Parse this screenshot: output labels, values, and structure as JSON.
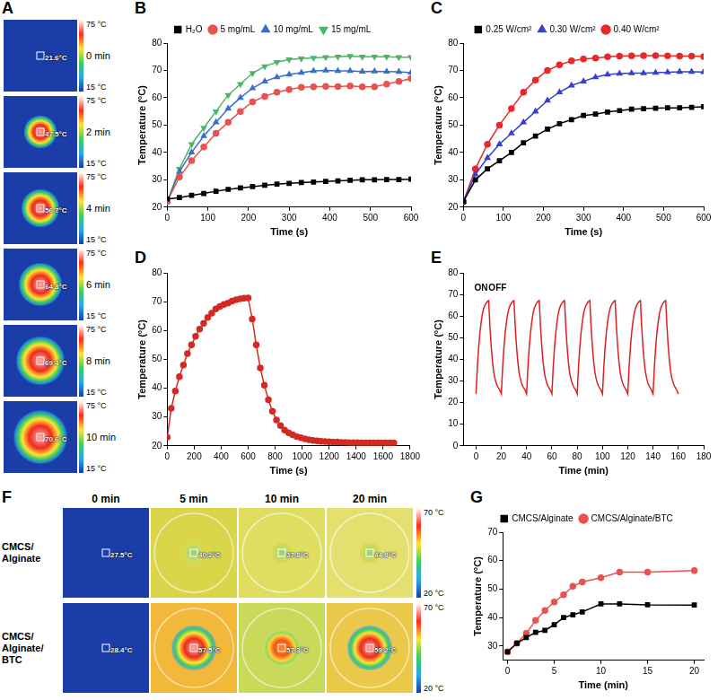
{
  "chart_data": [
    {
      "panel_label": "B",
      "type": "line",
      "x_label": "Time (s)",
      "y_label": "Temperature (°C)",
      "x": [
        0,
        30,
        60,
        90,
        120,
        150,
        180,
        210,
        240,
        270,
        300,
        330,
        360,
        390,
        420,
        450,
        480,
        510,
        540,
        570,
        600
      ],
      "series": [
        {
          "name": "H₂O",
          "color": "#000000",
          "marker": "square",
          "values": [
            23,
            23.5,
            24.3,
            25,
            25.8,
            26.5,
            27,
            27.5,
            28,
            28.4,
            28.7,
            29,
            29.2,
            29.4,
            29.6,
            29.8,
            30,
            30,
            30.1,
            30.1,
            30.2
          ]
        },
        {
          "name": "5 mg/mL",
          "color": "#e8524f",
          "marker": "circle",
          "values": [
            22,
            31,
            37,
            42,
            47,
            51,
            55,
            58.5,
            60.5,
            62,
            63,
            63.8,
            64,
            64.2,
            64.1,
            64.3,
            64,
            64,
            65,
            66,
            67
          ]
        },
        {
          "name": "10 mg/mL",
          "color": "#3a6fc9",
          "marker": "triangle",
          "values": [
            22,
            33,
            40,
            46,
            51,
            56,
            60,
            63.5,
            66,
            67.5,
            68.5,
            69.2,
            69.8,
            70,
            69.8,
            69.8,
            69.6,
            69.7,
            69.6,
            69.5,
            69.2
          ]
        },
        {
          "name": "15 mg/mL",
          "color": "#4db56a",
          "marker": "triangle_down",
          "values": [
            22,
            34,
            43,
            49,
            55,
            61,
            65,
            69,
            71.5,
            73,
            74,
            74.3,
            74.6,
            74.8,
            75,
            75.2,
            75,
            75,
            75,
            74.8,
            74.8
          ]
        }
      ],
      "xlim": [
        0,
        600
      ],
      "xticks": [
        0,
        100,
        200,
        300,
        400,
        500,
        600
      ],
      "ylim": [
        20,
        80
      ],
      "yticks": [
        20,
        30,
        40,
        50,
        60,
        70,
        80
      ],
      "grid": false,
      "legend": "top"
    },
    {
      "panel_label": "C",
      "type": "line",
      "x_label": "Time (s)",
      "y_label": "Temperature (°C)",
      "x": [
        0,
        30,
        60,
        90,
        120,
        150,
        180,
        210,
        240,
        270,
        300,
        330,
        360,
        390,
        420,
        450,
        480,
        510,
        540,
        570,
        600
      ],
      "series": [
        {
          "name": "0.25 W/cm²",
          "color": "#000000",
          "marker": "square",
          "values": [
            22,
            30,
            34,
            37,
            40,
            43.5,
            46,
            48.5,
            50.5,
            52,
            53.5,
            54,
            54.8,
            55.3,
            55.8,
            56,
            56.2,
            56.3,
            56.3,
            56.5,
            56.7
          ]
        },
        {
          "name": "0.30 W/cm²",
          "color": "#3a3fd0",
          "marker": "triangle",
          "values": [
            22,
            32,
            38,
            43,
            47,
            51,
            55,
            59,
            62,
            64.5,
            66,
            67.5,
            68.5,
            68.8,
            69,
            69,
            69.2,
            69.3,
            69.5,
            69.5,
            69.4
          ]
        },
        {
          "name": "0.40 W/cm²",
          "color": "#e8282a",
          "marker": "circle",
          "values": [
            22,
            34,
            43,
            50,
            56,
            62,
            66.5,
            70,
            72,
            73.5,
            74.2,
            74.5,
            75,
            75.2,
            75.3,
            75.4,
            75.4,
            75.3,
            75.2,
            75.2,
            75.1
          ]
        }
      ],
      "xlim": [
        0,
        600
      ],
      "xticks": [
        0,
        100,
        200,
        300,
        400,
        500,
        600
      ],
      "ylim": [
        20,
        80
      ],
      "yticks": [
        20,
        30,
        40,
        50,
        60,
        70,
        80
      ],
      "grid": false,
      "legend": "top"
    },
    {
      "panel_label": "D",
      "type": "line",
      "x_label": "Time (s)",
      "y_label": "Temperature (°C)",
      "x": [
        0,
        30,
        60,
        90,
        120,
        150,
        180,
        210,
        240,
        270,
        300,
        330,
        360,
        390,
        420,
        450,
        480,
        510,
        540,
        570,
        600,
        630,
        660,
        690,
        720,
        750,
        780,
        810,
        840,
        870,
        900,
        930,
        960,
        990,
        1020,
        1050,
        1080,
        1110,
        1140,
        1170,
        1200,
        1230,
        1260,
        1290,
        1320,
        1350,
        1380,
        1410,
        1440,
        1470,
        1500,
        1530,
        1560,
        1590,
        1620,
        1650,
        1680
      ],
      "series": [
        {
          "color": "#d42a24",
          "marker": "circle",
          "values": [
            23,
            33,
            39,
            44,
            48,
            52,
            55,
            58,
            60.5,
            62.5,
            64.5,
            66,
            67.5,
            68.3,
            69,
            69.5,
            70.2,
            70.7,
            71,
            71.2,
            71.3,
            64,
            55,
            47,
            41,
            36,
            32,
            29,
            27,
            25.5,
            24.5,
            23.8,
            23.2,
            22.8,
            22.4,
            22.1,
            21.9,
            21.7,
            21.6,
            21.5,
            21.4,
            21.3,
            21.3,
            21.2,
            21.2,
            21.1,
            21.1,
            21.1,
            21,
            21,
            21,
            21,
            21,
            21,
            21,
            21,
            21
          ]
        }
      ],
      "xlim": [
        0,
        1800
      ],
      "xticks": [
        0,
        200,
        400,
        600,
        800,
        1000,
        1200,
        1400,
        1600,
        1800
      ],
      "ylim": [
        20,
        80
      ],
      "yticks": [
        20,
        30,
        40,
        50,
        60,
        70,
        80
      ],
      "grid": false
    },
    {
      "panel_label": "E",
      "type": "line",
      "x_label": "Time (min)",
      "y_label": "Temperature (°C)",
      "x": [
        0,
        1,
        2,
        3,
        4,
        5,
        6,
        7,
        8,
        9,
        10,
        11,
        12,
        13,
        14,
        15,
        16,
        17,
        18,
        19,
        20,
        21,
        22,
        23,
        24,
        25,
        26,
        27,
        28,
        29,
        30,
        31,
        32,
        33,
        34,
        35,
        36,
        37,
        38,
        39,
        40,
        41,
        42,
        43,
        44,
        45,
        46,
        47,
        48,
        49,
        50,
        51,
        52,
        53,
        54,
        55,
        56,
        57,
        58,
        59,
        60,
        61,
        62,
        63,
        64,
        65,
        66,
        67,
        68,
        69,
        70,
        71,
        72,
        73,
        74,
        75,
        76,
        77,
        78,
        79,
        80,
        81,
        82,
        83,
        84,
        85,
        86,
        87,
        88,
        89,
        90,
        91,
        92,
        93,
        94,
        95,
        96,
        97,
        98,
        99,
        100,
        101,
        102,
        103,
        104,
        105,
        106,
        107,
        108,
        109,
        110,
        111,
        112,
        113,
        114,
        115,
        116,
        117,
        118,
        119,
        120,
        121,
        122,
        123,
        124,
        125,
        126,
        127,
        128,
        129,
        130,
        131,
        132,
        133,
        134,
        135,
        136,
        137,
        138,
        139,
        140,
        141,
        142,
        143,
        144,
        145,
        146,
        147,
        148,
        149,
        150,
        151,
        152,
        153,
        154,
        155,
        156,
        157,
        158,
        159,
        160
      ],
      "series": [
        {
          "color": "#e02020",
          "marker": "none",
          "values": [
            24,
            36,
            45,
            52,
            57,
            61,
            63.5,
            65,
            66,
            66.8,
            67.2,
            55,
            46,
            39,
            34,
            31,
            29,
            27.5,
            26.5,
            25.5,
            24,
            36,
            45,
            52,
            57,
            61,
            63.5,
            65,
            66,
            66.8,
            67.2,
            55,
            46,
            39,
            34,
            31,
            29,
            27.5,
            26.5,
            25.5,
            24,
            36,
            45,
            52,
            57,
            61,
            63.5,
            65,
            66,
            66.8,
            67.2,
            55,
            46,
            39,
            34,
            31,
            29,
            27.5,
            26.5,
            25.5,
            24,
            36,
            45,
            52,
            57,
            61,
            63.5,
            65,
            66,
            66.8,
            67.2,
            55,
            46,
            39,
            34,
            31,
            29,
            27.5,
            26.5,
            25.5,
            24,
            36,
            45,
            52,
            57,
            61,
            63.5,
            65,
            66,
            66.8,
            67.2,
            55,
            46,
            39,
            34,
            31,
            29,
            27.5,
            26.5,
            25.5,
            24,
            36,
            45,
            52,
            57,
            61,
            63.5,
            65,
            66,
            66.8,
            67.2,
            55,
            46,
            39,
            34,
            31,
            29,
            27.5,
            26.5,
            25.5,
            24,
            36,
            45,
            52,
            57,
            61,
            63.5,
            65,
            66,
            66.8,
            67.2,
            55,
            46,
            39,
            34,
            31,
            29,
            27.5,
            26.5,
            25.5,
            24,
            36,
            45,
            52,
            57,
            61,
            63.5,
            65,
            66,
            66.8,
            67.2,
            55,
            46,
            39,
            34,
            31,
            29,
            27.5,
            26.5,
            25.5,
            24
          ]
        }
      ],
      "annotations": [
        {
          "text": "ON",
          "x": 4,
          "y": 73
        },
        {
          "text": "OFF",
          "x": 17,
          "y": 73
        }
      ],
      "xlim": [
        -10,
        180
      ],
      "xticks": [
        0,
        20,
        40,
        60,
        80,
        100,
        120,
        140,
        160,
        180
      ],
      "ylim": [
        0,
        80
      ],
      "yticks": [
        0,
        10,
        20,
        30,
        40,
        50,
        60,
        70,
        80
      ],
      "grid": false
    },
    {
      "panel_label": "G",
      "type": "line",
      "x_label": "Time (min)",
      "y_label": "Temperature (°C)",
      "x": [
        0,
        1,
        2,
        3,
        4,
        5,
        6,
        7,
        8,
        10,
        12,
        15,
        20
      ],
      "series": [
        {
          "name": "CMCS/Alginate",
          "color": "#000000",
          "marker": "square",
          "values": [
            28,
            31,
            33,
            34.8,
            35.5,
            37.5,
            40,
            41,
            42,
            44.8,
            44.8,
            44.5,
            44.4
          ]
        },
        {
          "name": "CMCS/Alginate/BTC",
          "color": "#e8524f",
          "marker": "circle",
          "values": [
            28,
            31,
            34.5,
            39,
            42.5,
            45.5,
            48,
            51,
            52.5,
            54,
            56,
            56,
            56.5
          ]
        }
      ],
      "xlim": [
        -0.5,
        21
      ],
      "xticks": [
        0,
        5,
        10,
        15,
        20
      ],
      "ylim": [
        25,
        70
      ],
      "yticks": [
        30,
        40,
        50,
        60,
        70
      ],
      "grid": false,
      "legend": "top"
    }
  ],
  "thermal_images": [
    {
      "panel_label": "A",
      "scale_max": "75 °C",
      "scale_min": "15 °C",
      "frames": [
        {
          "time": "0 min",
          "temperature": "21.6°C"
        },
        {
          "time": "2 min",
          "temperature": "47.5°C"
        },
        {
          "time": "4 min",
          "temperature": "56.7°C"
        },
        {
          "time": "6 min",
          "temperature": "64.8°C"
        },
        {
          "time": "8 min",
          "temperature": "69.4°C"
        },
        {
          "time": "10 min",
          "temperature": "70.6°C"
        }
      ]
    },
    {
      "panel_label": "F",
      "scale_max": "70 °C",
      "scale_min": "20 °C",
      "columns": [
        "0 min",
        "5 min",
        "10 min",
        "20 min"
      ],
      "rows": [
        {
          "label": "CMCS/Alginate",
          "temperatures": [
            "27.5°C",
            "40.2°C",
            "37.8°C",
            "44.8°C"
          ]
        },
        {
          "label": "CMCS/Alginate/BTC",
          "temperatures": [
            "28.4°C",
            "57.5°C",
            "57.3°C",
            "59.2°C"
          ]
        }
      ]
    }
  ]
}
